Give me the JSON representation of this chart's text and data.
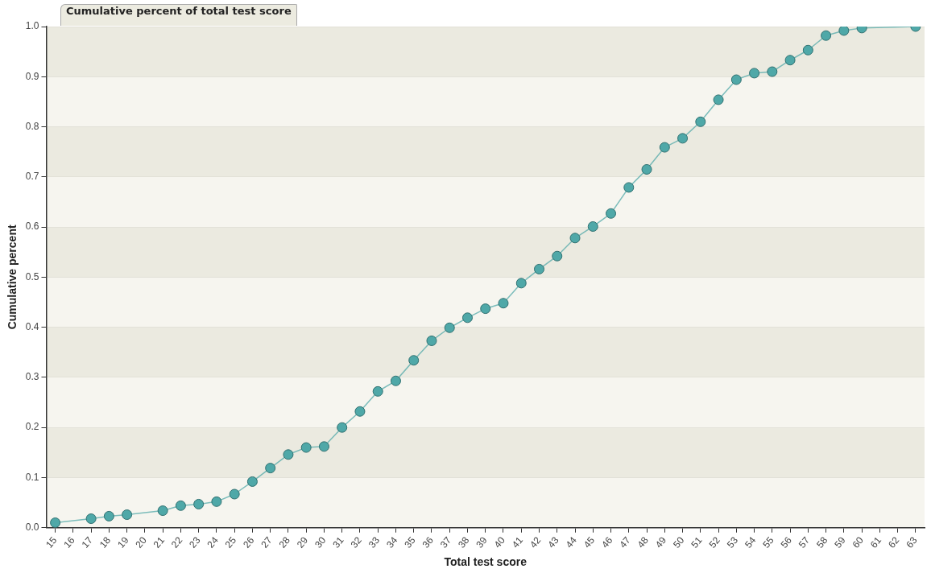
{
  "chart_data": {
    "type": "line",
    "title": "Cumulative percent of total test score",
    "xlabel": "Total test score",
    "ylabel": "Cumulative percent",
    "x": [
      15,
      17,
      18,
      19,
      21,
      22,
      23,
      24,
      25,
      26,
      27,
      28,
      29,
      30,
      31,
      32,
      33,
      34,
      35,
      36,
      37,
      38,
      39,
      40,
      41,
      42,
      43,
      44,
      45,
      46,
      47,
      48,
      49,
      50,
      51,
      52,
      53,
      54,
      55,
      56,
      57,
      58,
      59,
      60,
      63
    ],
    "series": [
      {
        "color": "#4fa8a8",
        "values": [
          0.01,
          0.018,
          0.023,
          0.026,
          0.034,
          0.044,
          0.047,
          0.052,
          0.067,
          0.092,
          0.119,
          0.146,
          0.16,
          0.162,
          0.2,
          0.232,
          0.272,
          0.293,
          0.334,
          0.373,
          0.399,
          0.419,
          0.437,
          0.448,
          0.488,
          0.516,
          0.542,
          0.578,
          0.601,
          0.627,
          0.679,
          0.715,
          0.759,
          0.777,
          0.81,
          0.854,
          0.894,
          0.907,
          0.91,
          0.933,
          0.953,
          0.982,
          0.992,
          0.997,
          1.0
        ]
      }
    ],
    "xlim": [
      14.5,
      63.5
    ],
    "xticks": [
      15,
      16,
      17,
      18,
      19,
      20,
      21,
      22,
      23,
      24,
      25,
      26,
      27,
      28,
      29,
      30,
      31,
      32,
      33,
      34,
      35,
      36,
      37,
      38,
      39,
      40,
      41,
      42,
      43,
      44,
      45,
      46,
      47,
      48,
      49,
      50,
      51,
      52,
      53,
      54,
      55,
      56,
      57,
      58,
      59,
      60,
      61,
      62,
      63
    ],
    "ylim": [
      0,
      1
    ],
    "yticks": [
      {
        "value": 0,
        "label": "0.0"
      },
      {
        "value": 0.1,
        "label": "0.1"
      },
      {
        "value": 0.2,
        "label": "0.2"
      },
      {
        "value": 0.3,
        "label": "0.3"
      },
      {
        "value": 0.4,
        "label": "0.4"
      },
      {
        "value": 0.5,
        "label": "0.5"
      },
      {
        "value": 0.6,
        "label": "0.6"
      },
      {
        "value": 0.7,
        "label": "0.7"
      },
      {
        "value": 0.8,
        "label": "0.8"
      },
      {
        "value": 0.9,
        "label": "0.9"
      },
      {
        "value": 1,
        "label": "1.0"
      }
    ],
    "grid": "y",
    "legend": false,
    "marker": "circle",
    "line_style": "solid"
  }
}
